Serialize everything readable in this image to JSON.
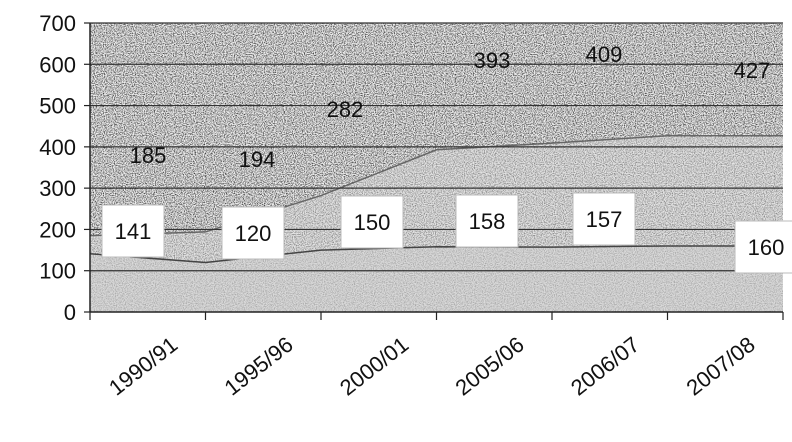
{
  "chart_data": {
    "type": "area",
    "categories": [
      "1990/91",
      "1995/96",
      "2000/01",
      "2005/06",
      "2006/07",
      "2007/08",
      ""
    ],
    "series": [
      {
        "values": [
          141,
          120,
          150,
          158,
          157,
          160,
          160
        ],
        "labels": [
          "141",
          "120",
          "150",
          "158",
          "157",
          "160",
          "160"
        ]
      },
      {
        "values": [
          185,
          194,
          282,
          393,
          409,
          427,
          427
        ],
        "labels": [
          "185",
          "194",
          "282",
          "393",
          "409",
          "427",
          "427"
        ]
      }
    ],
    "title": "",
    "xlabel": "",
    "ylabel": "",
    "ylim": [
      0,
      700
    ],
    "yticks": [
      0,
      100,
      200,
      300,
      400,
      500,
      600,
      700
    ],
    "grid": true,
    "legend": "none"
  }
}
